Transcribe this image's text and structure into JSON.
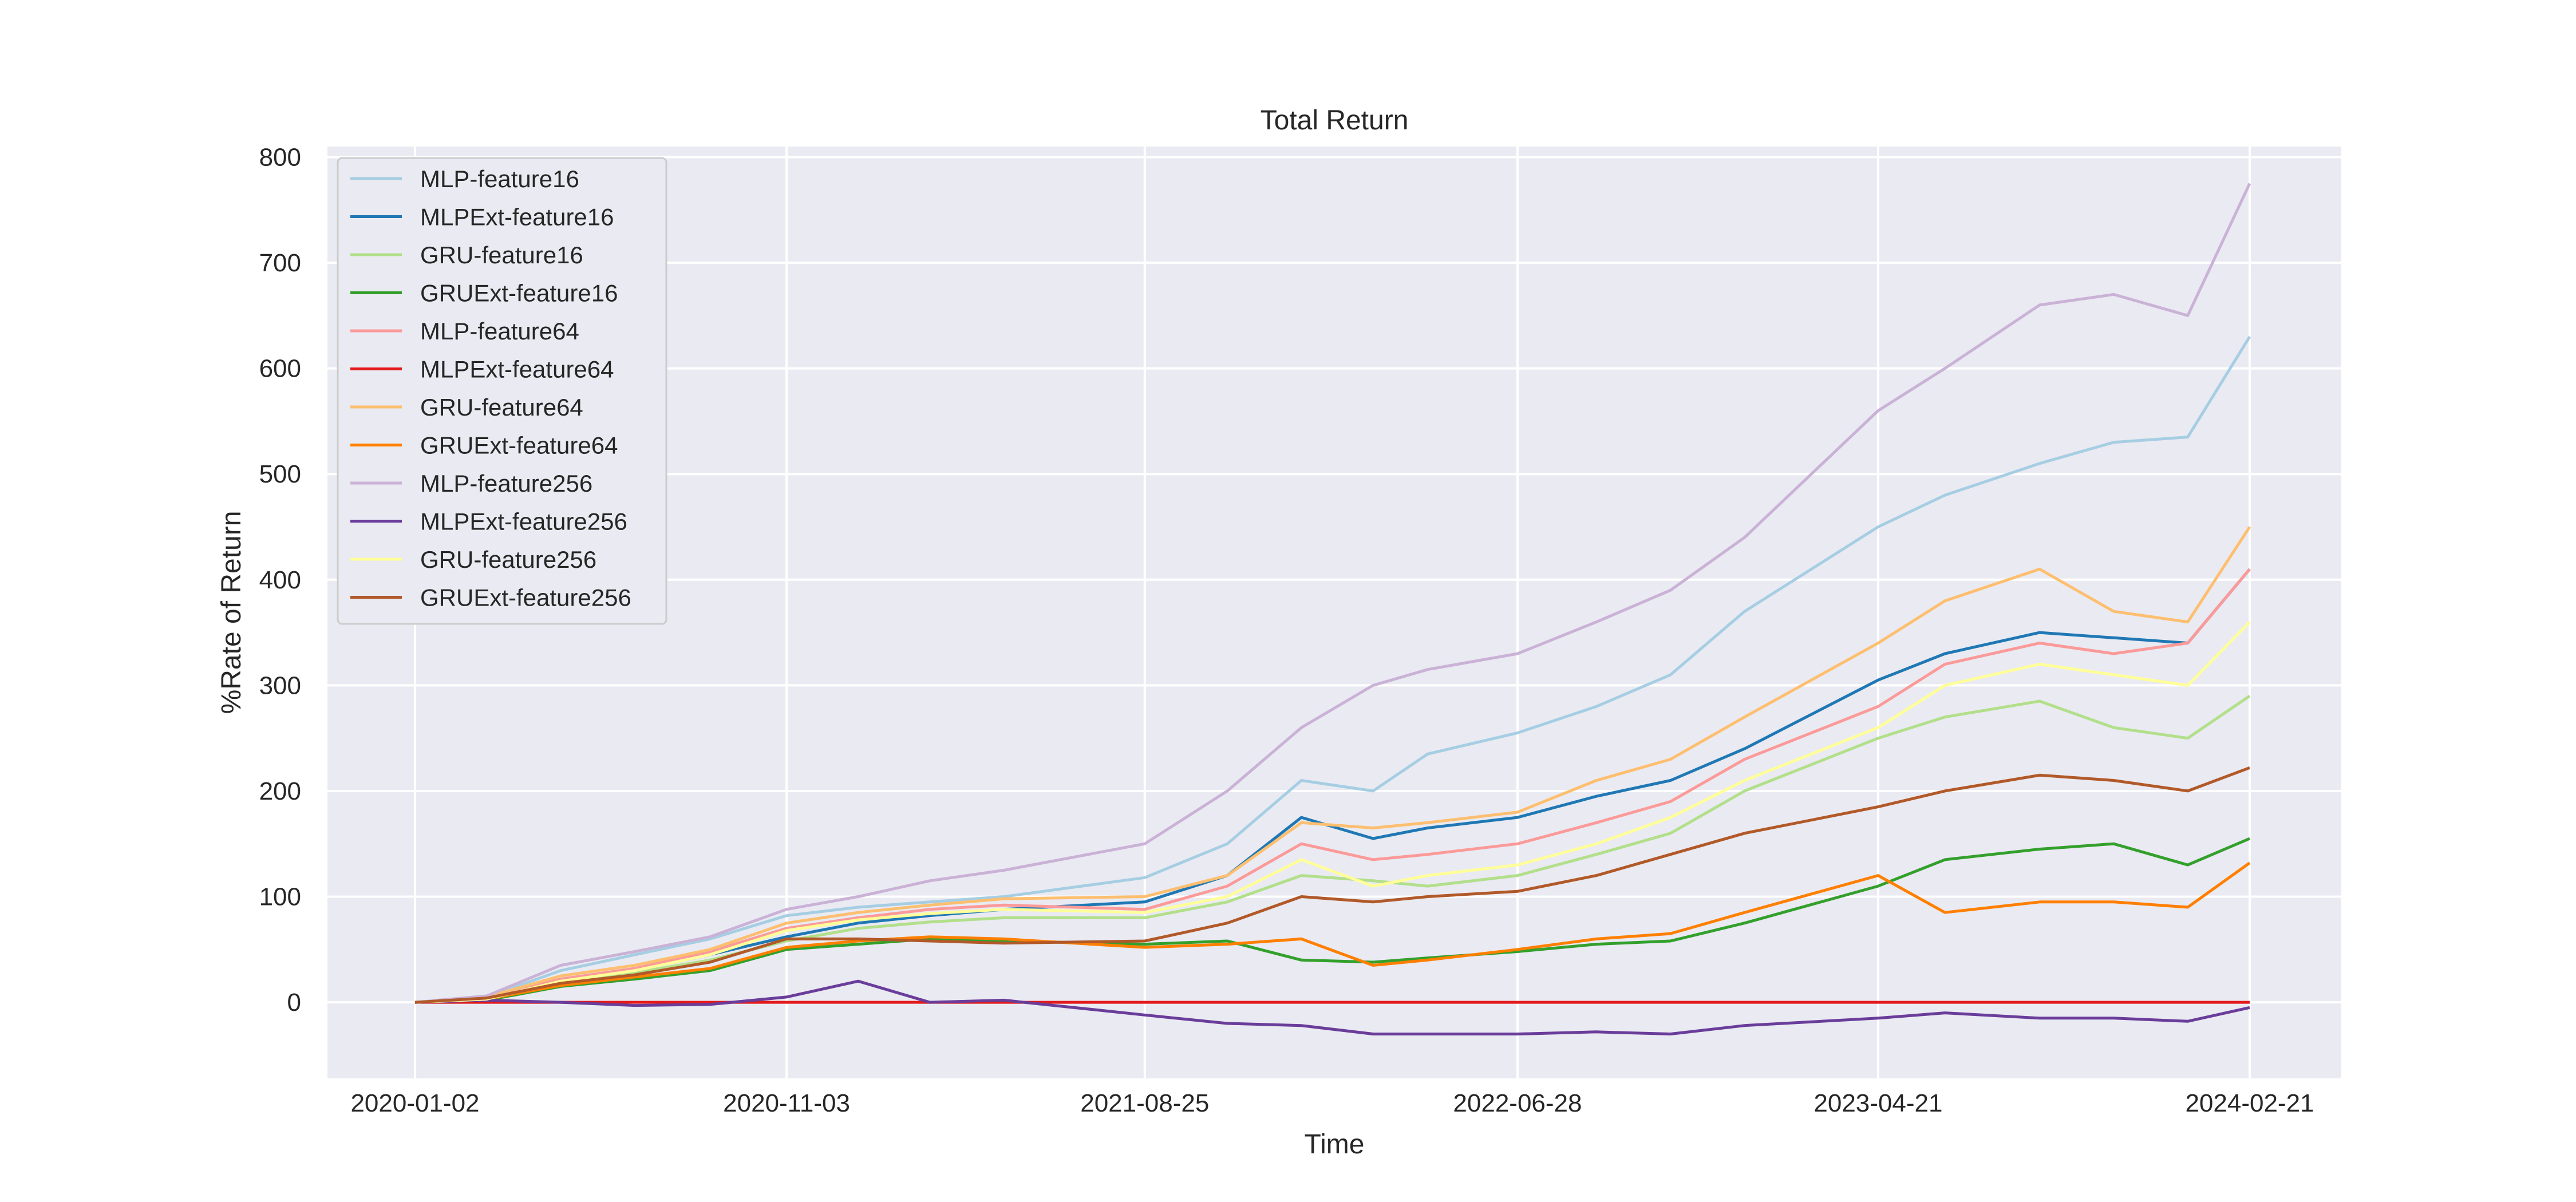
{
  "chart_data": {
    "type": "line",
    "title": "Total Return",
    "xlabel": "Time",
    "ylabel": "%Rate of Return",
    "x": [
      "2020-01-02",
      "2020-03-01",
      "2020-05-01",
      "2020-07-01",
      "2020-09-01",
      "2020-11-03",
      "2021-01-01",
      "2021-03-01",
      "2021-05-01",
      "2021-08-25",
      "2021-11-01",
      "2022-01-01",
      "2022-03-01",
      "2022-04-15",
      "2022-06-28",
      "2022-09-01",
      "2022-11-01",
      "2023-01-01",
      "2023-04-21",
      "2023-06-15",
      "2023-09-01",
      "2023-11-01",
      "2024-01-01",
      "2024-02-21"
    ],
    "x_ticks": [
      "2020-01-02",
      "2020-11-03",
      "2021-08-25",
      "2022-06-28",
      "2023-04-21",
      "2024-02-21"
    ],
    "y_ticks": [
      0,
      100,
      200,
      300,
      400,
      500,
      600,
      700,
      800
    ],
    "ylim": [
      -72,
      810
    ],
    "grid": true,
    "legend_position": "top-left",
    "series": [
      {
        "name": "MLP-feature16",
        "color": "#a6cee3",
        "values": [
          0,
          5,
          30,
          45,
          60,
          82,
          90,
          95,
          100,
          118,
          150,
          210,
          200,
          235,
          255,
          280,
          310,
          370,
          450,
          480,
          510,
          530,
          535,
          630
        ]
      },
      {
        "name": "MLPExt-feature16",
        "color": "#1f78b4",
        "values": [
          0,
          3,
          20,
          30,
          45,
          62,
          75,
          82,
          88,
          95,
          120,
          175,
          155,
          165,
          175,
          195,
          210,
          240,
          305,
          330,
          350,
          345,
          340,
          410
        ]
      },
      {
        "name": "GRU-feature16",
        "color": "#b2df8a",
        "values": [
          0,
          2,
          18,
          28,
          40,
          58,
          70,
          76,
          80,
          80,
          95,
          120,
          115,
          110,
          120,
          140,
          160,
          200,
          250,
          270,
          285,
          260,
          250,
          290
        ]
      },
      {
        "name": "GRUExt-feature16",
        "color": "#33a02c",
        "values": [
          0,
          2,
          15,
          22,
          30,
          50,
          55,
          60,
          58,
          55,
          58,
          40,
          38,
          42,
          48,
          55,
          58,
          75,
          110,
          135,
          145,
          150,
          130,
          155
        ]
      },
      {
        "name": "MLP-feature64",
        "color": "#fb9a99",
        "values": [
          0,
          4,
          22,
          32,
          48,
          70,
          80,
          88,
          92,
          88,
          110,
          150,
          135,
          140,
          150,
          170,
          190,
          230,
          280,
          320,
          340,
          330,
          340,
          410
        ]
      },
      {
        "name": "MLPExt-feature64",
        "color": "#e31a1c",
        "values": [
          0,
          0,
          0,
          0,
          0,
          0,
          0,
          0,
          0,
          0,
          0,
          0,
          0,
          0,
          0,
          0,
          0,
          0,
          0,
          0,
          0,
          0,
          0,
          0
        ]
      },
      {
        "name": "GRU-feature64",
        "color": "#fdbf6f",
        "values": [
          0,
          5,
          25,
          35,
          50,
          75,
          85,
          92,
          98,
          100,
          120,
          170,
          165,
          170,
          180,
          210,
          230,
          270,
          340,
          380,
          410,
          370,
          360,
          450
        ]
      },
      {
        "name": "GRUExt-feature64",
        "color": "#ff7f00",
        "values": [
          0,
          3,
          16,
          24,
          32,
          52,
          58,
          62,
          60,
          52,
          55,
          60,
          35,
          40,
          50,
          60,
          65,
          85,
          120,
          85,
          95,
          95,
          90,
          132
        ]
      },
      {
        "name": "MLP-feature256",
        "color": "#cab2d6",
        "values": [
          0,
          6,
          35,
          48,
          62,
          88,
          100,
          115,
          125,
          150,
          200,
          260,
          300,
          315,
          330,
          360,
          390,
          440,
          560,
          600,
          660,
          670,
          650,
          775
        ]
      },
      {
        "name": "MLPExt-feature256",
        "color": "#6a3d9a",
        "values": [
          0,
          2,
          0,
          -3,
          -2,
          5,
          20,
          0,
          2,
          -12,
          -20,
          -22,
          -30,
          -30,
          -30,
          -28,
          -30,
          -22,
          -15,
          -10,
          -15,
          -15,
          -18,
          -5
        ]
      },
      {
        "name": "GRU-feature256",
        "color": "#ffff99",
        "values": [
          0,
          3,
          20,
          30,
          45,
          68,
          78,
          84,
          88,
          85,
          100,
          135,
          110,
          120,
          130,
          150,
          175,
          210,
          260,
          300,
          320,
          310,
          300,
          360
        ]
      },
      {
        "name": "GRUExt-feature256",
        "color": "#b15928",
        "values": [
          0,
          4,
          18,
          26,
          38,
          60,
          60,
          58,
          56,
          58,
          75,
          100,
          95,
          100,
          105,
          120,
          140,
          160,
          185,
          200,
          215,
          210,
          200,
          222
        ]
      }
    ]
  }
}
